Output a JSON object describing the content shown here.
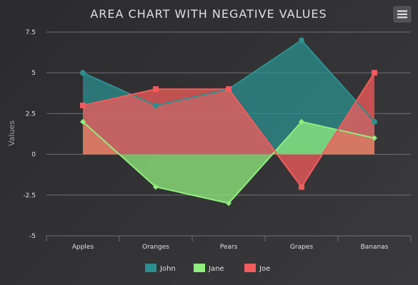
{
  "menu": {
    "icon": "hamburger-menu-icon"
  },
  "chart_data": {
    "type": "area",
    "title": "AREA CHART WITH NEGATIVE VALUES",
    "xlabel": "",
    "ylabel": "Values",
    "categories": [
      "Apples",
      "Oranges",
      "Pears",
      "Grapes",
      "Bananas"
    ],
    "ylim": [
      -5,
      7.5
    ],
    "yticks": [
      "7.5",
      "5",
      "2.5",
      "0",
      "-2.5",
      "-5"
    ],
    "ytick_values": [
      7.5,
      5,
      2.5,
      0,
      -2.5,
      -5
    ],
    "grid": true,
    "legend": "bottom",
    "series": [
      {
        "name": "John",
        "values": [
          5,
          3,
          4,
          7,
          2
        ],
        "color": "#2b908f",
        "marker": "circle"
      },
      {
        "name": "Jane",
        "values": [
          2,
          -2,
          -3,
          2,
          1
        ],
        "color": "#90ee7e",
        "marker": "diamond"
      },
      {
        "name": "Joe",
        "values": [
          3,
          4,
          4,
          -2,
          5
        ],
        "color": "#f45b5b",
        "marker": "square"
      }
    ]
  }
}
